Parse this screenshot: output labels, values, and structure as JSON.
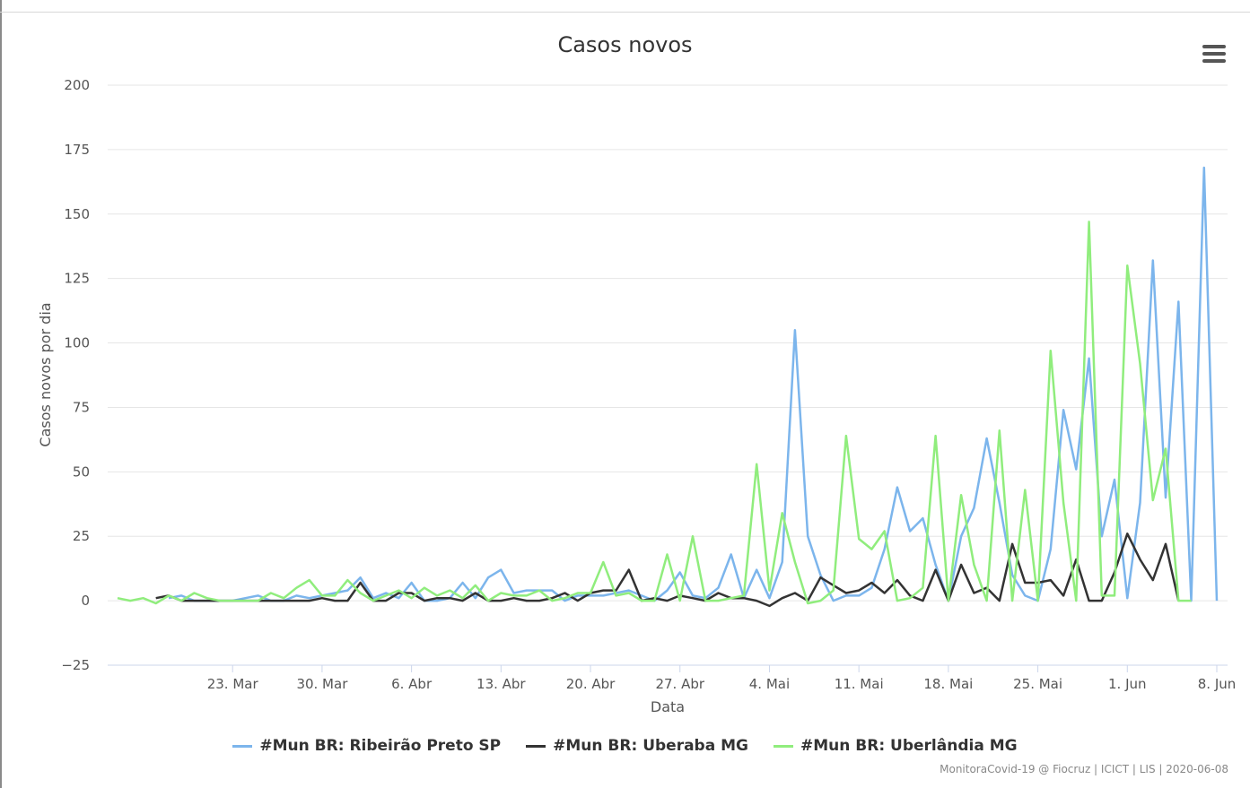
{
  "title": "Casos novos",
  "menu_icon": "hamburger-menu-icon",
  "credits": "MonitoraCovid-19 @ Fiocruz | ICICT | LIS | 2020-06-08",
  "chart_data": {
    "type": "line",
    "title": "Casos novos",
    "xlabel": "Data",
    "ylabel": "Casos novos por dia",
    "ylim": [
      -25,
      200
    ],
    "yticks": [
      -25,
      0,
      25,
      50,
      75,
      100,
      125,
      150,
      175,
      200
    ],
    "xlim": [
      "2020-03-14",
      "2020-06-08"
    ],
    "xticks": [
      {
        "date": "2020-03-23",
        "label": "23. Mar"
      },
      {
        "date": "2020-03-30",
        "label": "30. Mar"
      },
      {
        "date": "2020-04-06",
        "label": "6. Abr"
      },
      {
        "date": "2020-04-13",
        "label": "13. Abr"
      },
      {
        "date": "2020-04-20",
        "label": "20. Abr"
      },
      {
        "date": "2020-04-27",
        "label": "27. Abr"
      },
      {
        "date": "2020-05-04",
        "label": "4. Mai"
      },
      {
        "date": "2020-05-11",
        "label": "11. Mai"
      },
      {
        "date": "2020-05-18",
        "label": "18. Mai"
      },
      {
        "date": "2020-05-25",
        "label": "25. Mai"
      },
      {
        "date": "2020-06-01",
        "label": "1. Jun"
      },
      {
        "date": "2020-06-08",
        "label": "8. Jun"
      }
    ],
    "grid": true,
    "legend_position": "bottom-center",
    "series": [
      {
        "name": "#Mun BR: Ribeirão Preto SP",
        "color": "#7cb5ec",
        "start_date": "2020-03-18",
        "values": [
          1,
          2,
          0,
          0,
          0,
          0,
          1,
          2,
          0,
          0,
          2,
          1,
          2,
          3,
          4,
          9,
          1,
          3,
          1,
          7,
          0,
          0,
          1,
          7,
          1,
          9,
          12,
          3,
          4,
          4,
          4,
          0,
          2,
          2,
          2,
          3,
          4,
          2,
          0,
          4,
          11,
          2,
          1,
          5,
          18,
          1,
          12,
          1,
          15,
          105,
          25,
          10,
          0,
          2,
          2,
          5,
          20,
          44,
          27,
          32,
          14,
          0,
          25,
          36,
          63,
          38,
          10,
          2,
          0,
          20,
          74,
          51,
          94,
          25,
          47,
          1,
          38,
          132,
          40,
          116,
          0,
          168,
          0
        ]
      },
      {
        "name": "#Mun BR: Uberaba MG",
        "color": "#333333",
        "start_date": "2020-03-17",
        "values": [
          1,
          2,
          0,
          0,
          0,
          0,
          0,
          0,
          0,
          0,
          0,
          0,
          0,
          1,
          0,
          0,
          7,
          0,
          0,
          3,
          3,
          0,
          1,
          1,
          0,
          3,
          0,
          0,
          1,
          0,
          0,
          1,
          3,
          0,
          3,
          4,
          4,
          12,
          0,
          1,
          0,
          2,
          1,
          0,
          3,
          1,
          1,
          0,
          -2,
          1,
          3,
          0,
          9,
          6,
          3,
          4,
          7,
          3,
          8,
          2,
          0,
          12,
          0,
          14,
          3,
          5,
          0,
          22,
          7,
          7,
          8,
          2,
          16,
          0,
          0,
          11,
          26,
          16,
          8,
          22,
          0
        ]
      },
      {
        "name": "#Mun BR: Uberlândia MG",
        "color": "#90ed7d",
        "start_date": "2020-03-14",
        "values": [
          1,
          0,
          1,
          -1,
          2,
          0,
          3,
          1,
          0,
          0,
          0,
          0,
          3,
          1,
          5,
          8,
          2,
          2,
          8,
          3,
          0,
          2,
          4,
          1,
          5,
          2,
          4,
          1,
          6,
          0,
          3,
          2,
          2,
          4,
          0,
          1,
          3,
          3,
          15,
          2,
          3,
          0,
          0,
          18,
          0,
          25,
          0,
          0,
          1,
          2,
          53,
          4,
          34,
          15,
          -1,
          0,
          4,
          64,
          24,
          20,
          27,
          0,
          1,
          5,
          64,
          0,
          41,
          14,
          0,
          66,
          0,
          43,
          0,
          97,
          38,
          0,
          147,
          2,
          2,
          130,
          92,
          39,
          59,
          0,
          0
        ]
      }
    ]
  }
}
